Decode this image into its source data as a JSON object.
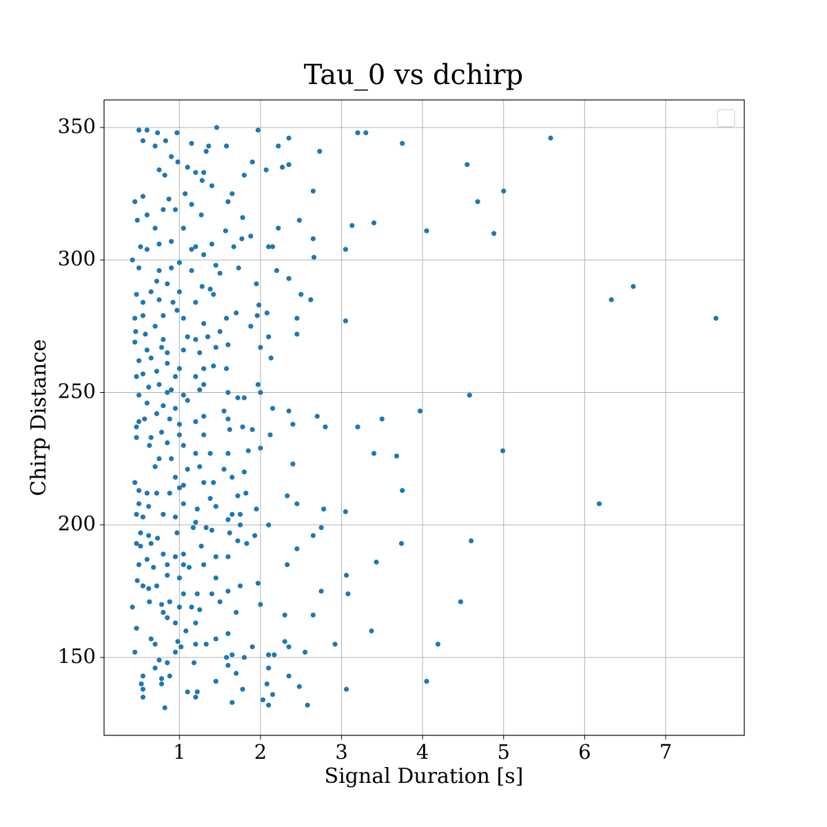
{
  "chart_data": {
    "type": "scatter",
    "title": "Tau_0 vs dchirp",
    "x_label": "Signal Duration [s]",
    "y_label": "Chirp Distance",
    "color": "#1f77b4",
    "grid": true,
    "xlim": [
      0.07,
      7.97
    ],
    "ylim": [
      120.6,
      360.4
    ],
    "xticks": [
      1,
      2,
      3,
      4,
      5,
      6,
      7
    ],
    "yticks": [
      150,
      200,
      250,
      300,
      350
    ],
    "x": [
      5.58,
      4.55,
      5.0,
      4.68,
      4.05,
      4.88,
      3.75,
      3.2,
      3.3,
      2.73,
      2.65,
      3.4,
      3.13,
      2.65,
      2.66,
      3.05,
      2.35,
      2.27,
      2.35,
      2.22,
      2.48,
      2.22,
      2.2,
      2.35,
      6.6,
      6.33,
      7.62,
      2.5,
      2.62,
      2.45,
      3.05,
      2.45,
      4.58,
      3.97,
      3.5,
      3.2,
      2.8,
      2.7,
      2.35,
      2.4,
      4.99,
      3.68,
      3.4,
      2.4,
      3.75,
      6.18,
      2.33,
      2.45,
      2.78,
      3.05,
      2.75,
      2.65,
      4.6,
      3.74,
      3.43,
      2.45,
      3.06,
      2.33,
      2.75,
      3.08,
      4.47,
      2.3,
      2.65,
      3.37,
      2.3,
      2.92,
      4.19,
      2.35,
      2.55,
      4.05,
      2.35,
      2.48,
      3.06,
      2.58,
      2.17,
      0.5,
      0.6,
      0.73,
      0.97,
      1.46,
      1.97,
      0.55,
      0.83,
      0.7,
      1.15,
      1.36,
      1.58,
      0.9,
      1.33,
      0.98,
      0.75,
      0.82,
      1.1,
      1.2,
      1.3,
      1.28,
      1.65,
      1.9,
      1.8,
      2.07,
      1.4,
      0.45,
      0.55,
      0.6,
      0.48,
      0.8,
      0.95,
      0.7,
      0.87,
      1.07,
      1.15,
      1.6,
      1.27,
      1.57,
      1.05,
      1.78,
      1.88,
      0.52,
      0.6,
      0.75,
      0.9,
      1.2,
      1.4,
      1.15,
      1.3,
      1.67,
      1.77,
      2.1,
      2.15,
      0.42,
      0.5,
      0.75,
      0.9,
      1.0,
      1.15,
      1.45,
      1.5,
      1.73,
      0.72,
      0.85,
      1.0,
      1.28,
      1.38,
      0.47,
      0.55,
      0.65,
      0.75,
      0.92,
      1.2,
      1.42,
      1.98,
      1.95,
      0.45,
      0.55,
      0.7,
      0.8,
      0.97,
      1.05,
      1.3,
      1.58,
      1.7,
      1.96,
      2.08,
      0.46,
      0.58,
      0.8,
      1.1,
      1.2,
      1.35,
      1.5,
      1.88,
      2.1,
      0.45,
      0.6,
      0.78,
      0.85,
      1.05,
      1.25,
      1.45,
      1.6,
      2.0,
      0.5,
      0.65,
      0.85,
      1.0,
      1.3,
      1.42,
      1.58,
      2.13,
      0.47,
      0.55,
      0.72,
      0.95,
      1.2,
      1.3,
      1.97,
      0.62,
      0.75,
      0.85,
      0.9,
      1.05,
      1.25,
      1.6,
      1.72,
      1.8,
      2.0,
      0.5,
      0.6,
      0.8,
      0.95,
      1.1,
      1.55,
      2.15,
      0.5,
      0.57,
      0.72,
      0.88,
      1.0,
      1.2,
      1.3,
      1.6,
      1.78,
      1.9,
      0.47,
      0.65,
      0.78,
      1.0,
      1.3,
      1.62,
      2.12,
      0.47,
      0.63,
      0.85,
      1.05,
      1.2,
      1.38,
      1.6,
      1.85,
      2.0,
      0.75,
      0.9,
      1.1,
      1.25,
      1.55,
      1.65,
      1.8,
      0.45,
      0.7,
      0.95,
      1.05,
      1.3,
      1.42,
      1.72,
      1.82,
      0.5,
      0.6,
      0.72,
      0.88,
      1.0,
      1.38,
      0.5,
      0.62,
      1.05,
      1.22,
      1.45,
      1.65,
      1.75,
      1.95,
      0.47,
      0.55,
      0.8,
      0.95,
      1.2,
      1.33,
      1.6,
      1.75,
      2.1,
      0.52,
      0.62,
      0.73,
      0.97,
      1.17,
      1.4,
      1.62,
      1.93,
      0.47,
      0.52,
      0.65,
      0.8,
      0.95,
      1.05,
      1.27,
      1.45,
      1.6,
      1.72,
      1.83,
      0.5,
      0.6,
      0.68,
      0.85,
      1.05,
      1.12,
      1.3,
      1.45,
      0.48,
      0.55,
      0.62,
      0.72,
      0.85,
      1.0,
      1.05,
      1.22,
      1.4,
      1.6,
      1.75,
      1.97,
      0.63,
      0.78,
      0.88,
      1.0,
      1.15,
      1.25,
      1.5,
      1.7,
      2.0,
      0.42,
      0.8,
      0.85,
      0.95,
      1.08,
      1.2,
      1.45,
      1.6,
      1.9,
      0.47,
      0.65,
      0.7,
      0.98,
      1.02,
      1.2,
      1.33,
      1.58,
      1.65,
      1.8,
      2.1,
      0.45,
      0.75,
      0.85,
      0.95,
      1.18,
      1.6,
      1.7,
      2.1,
      0.55,
      0.7,
      0.78,
      0.88,
      1.45,
      1.78,
      2.08,
      0.53,
      0.55,
      0.78,
      1.1,
      1.22,
      2.15,
      0.55,
      1.2,
      1.65,
      2.03,
      0.82,
      2.1
    ],
    "values": [
      346,
      336,
      326,
      322,
      311,
      310,
      344,
      348,
      348,
      341,
      326,
      314,
      313,
      308,
      301,
      304,
      336,
      335,
      346,
      343,
      315,
      312,
      296,
      293,
      290,
      285,
      278,
      287,
      285,
      278,
      277,
      272,
      249,
      243,
      240,
      237,
      237,
      241,
      243,
      238,
      228,
      226,
      227,
      223,
      213,
      208,
      211,
      208,
      206,
      205,
      199,
      196,
      194,
      193,
      186,
      191,
      181,
      185,
      175,
      174,
      171,
      166,
      166,
      160,
      156,
      155,
      155,
      154,
      152,
      141,
      143,
      139,
      138,
      132,
      151,
      349,
      349,
      348,
      348,
      350,
      349,
      345,
      345,
      343,
      344,
      343,
      343,
      339,
      341,
      337,
      334,
      332,
      335,
      333,
      333,
      330,
      325,
      337,
      332,
      334,
      328,
      322,
      324,
      317,
      315,
      319,
      319,
      312,
      323,
      325,
      321,
      322,
      317,
      311,
      312,
      316,
      309,
      305,
      304,
      306,
      307,
      305,
      306,
      304,
      302,
      305,
      308,
      305,
      305,
      300,
      297,
      296,
      297,
      299,
      296,
      298,
      295,
      297,
      292,
      291,
      288,
      290,
      289,
      287,
      284,
      288,
      285,
      284,
      284,
      287,
      283,
      291,
      278,
      279,
      275,
      279,
      281,
      278,
      276,
      278,
      280,
      279,
      280,
      273,
      272,
      270,
      271,
      270,
      271,
      273,
      275,
      271,
      269,
      266,
      267,
      265,
      266,
      265,
      267,
      268,
      267,
      262,
      263,
      261,
      259,
      259,
      260,
      259,
      263,
      256,
      257,
      258,
      256,
      256,
      253,
      253,
      252,
      253,
      250,
      251,
      249,
      251,
      250,
      248,
      248,
      250,
      249,
      246,
      245,
      244,
      247,
      243,
      244,
      239,
      240,
      242,
      240,
      238,
      239,
      241,
      240,
      237,
      236,
      237,
      233,
      235,
      234,
      234,
      236,
      234,
      233,
      230,
      231,
      230,
      227,
      227,
      227,
      228,
      229,
      225,
      225,
      221,
      222,
      221,
      218,
      220,
      216,
      222,
      218,
      215,
      216,
      216,
      211,
      212,
      213,
      212,
      212,
      212,
      214,
      210,
      208,
      207,
      208,
      206,
      207,
      204,
      204,
      206,
      204,
      203,
      204,
      203,
      201,
      199,
      202,
      200,
      200,
      197,
      196,
      195,
      197,
      199,
      198,
      197,
      196,
      193,
      192,
      193,
      189,
      188,
      189,
      192,
      188,
      188,
      194,
      193,
      185,
      187,
      184,
      185,
      185,
      184,
      185,
      180,
      179,
      177,
      176,
      177,
      181,
      180,
      174,
      174,
      174,
      175,
      177,
      178,
      171,
      170,
      171,
      169,
      169,
      168,
      171,
      167,
      170,
      169,
      167,
      165,
      163,
      160,
      163,
      157,
      159,
      154,
      161,
      157,
      155,
      156,
      154,
      155,
      155,
      150,
      151,
      150,
      151,
      152,
      149,
      148,
      152,
      148,
      147,
      144,
      146,
      143,
      146,
      142,
      143,
      141,
      138,
      140,
      140,
      138,
      140,
      137,
      137,
      136,
      135,
      135,
      133,
      134,
      131,
      132
    ]
  }
}
